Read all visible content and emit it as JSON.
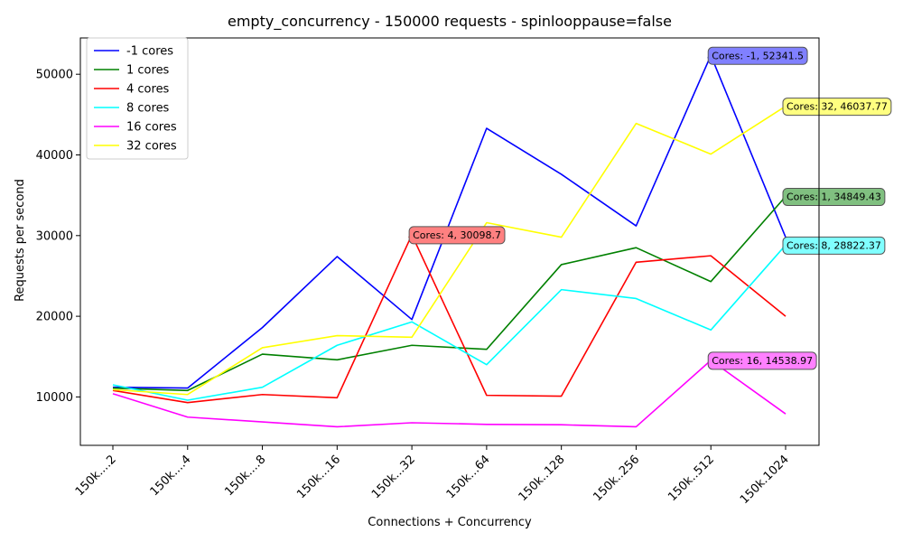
{
  "chart_data": {
    "type": "line",
    "title": "empty_concurrency - 150000 requests - spinlooppause=false",
    "xlabel": "Connections + Concurrency",
    "ylabel": "Requests per second",
    "ylim": [
      4000,
      54500
    ],
    "yticks": [
      10000,
      20000,
      30000,
      40000,
      50000
    ],
    "categories": [
      "150k....2",
      "150k....4",
      "150k....8",
      "150k...16",
      "150k...32",
      "150k...64",
      "150k..128",
      "150k..256",
      "150k..512",
      "150k.1024"
    ],
    "legend_position": "upper-left",
    "grid": false,
    "series": [
      {
        "name": "-1 cores",
        "color": "#0000ff",
        "values": [
          11200,
          11100,
          18600,
          27400,
          19600,
          43300,
          37600,
          31200,
          52341.5,
          29800
        ]
      },
      {
        "name": "1 cores",
        "color": "#008000",
        "values": [
          11100,
          10800,
          15300,
          14600,
          16400,
          15900,
          26400,
          28500,
          24300,
          34849.43
        ]
      },
      {
        "name": "4 cores",
        "color": "#ff0000",
        "values": [
          10800,
          9300,
          10300,
          9900,
          30098.7,
          10200,
          10100,
          26700,
          27500,
          20000
        ]
      },
      {
        "name": "8 cores",
        "color": "#00ffff",
        "values": [
          11500,
          9600,
          11200,
          16400,
          19300,
          14000,
          23300,
          22200,
          18300,
          28822.37
        ]
      },
      {
        "name": "16 cores",
        "color": "#ff00ff",
        "values": [
          10400,
          7500,
          6900,
          6300,
          6800,
          6600,
          6550,
          6300,
          14538.97,
          7900
        ]
      },
      {
        "name": "32 cores",
        "color": "#ffff00",
        "values": [
          10900,
          10300,
          16100,
          17600,
          17400,
          31600,
          29800,
          43900,
          40100,
          46037.77
        ]
      }
    ],
    "annotations": [
      {
        "text": "Cores: -1, 52341.5",
        "series": 0,
        "index": 8,
        "bg": "#8080ff"
      },
      {
        "text": "Cores: 32, 46037.77",
        "series": 5,
        "index": 9,
        "bg": "#ffff80"
      },
      {
        "text": "Cores: 1, 34849.43",
        "series": 1,
        "index": 9,
        "bg": "#80c080"
      },
      {
        "text": "Cores: 4, 30098.7",
        "series": 2,
        "index": 4,
        "bg": "#ff8080"
      },
      {
        "text": "Cores: 8, 28822.37",
        "series": 3,
        "index": 9,
        "bg": "#80ffff"
      },
      {
        "text": "Cores: 16, 14538.97",
        "series": 4,
        "index": 8,
        "bg": "#ff80ff"
      }
    ]
  }
}
